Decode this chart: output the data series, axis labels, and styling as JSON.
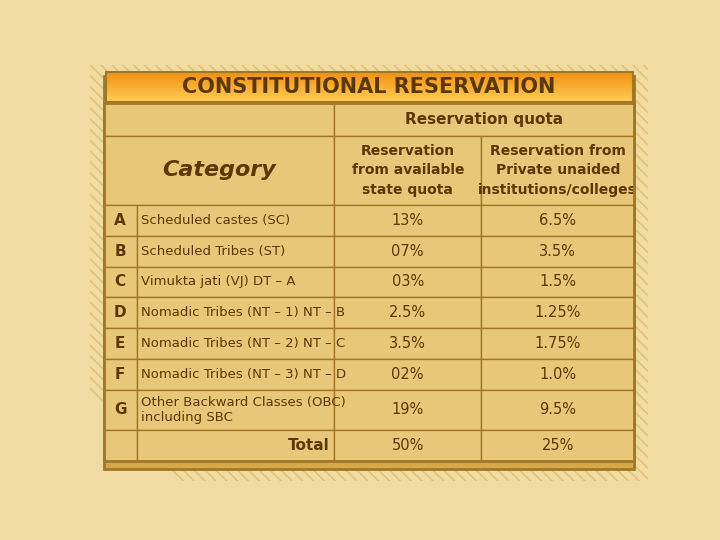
{
  "title": "CONSTITUTIONAL RESERVATION",
  "title_bg_top": "#FFB733",
  "title_bg_bot": "#F5A020",
  "title_color": "#6B3A00",
  "header1": "Reservation quota",
  "col1_header": "Reservation\nfrom available\nstate quota",
  "col2_header": "Reservation from\nPrivate unaided\ninstitutions/colleges",
  "rows": [
    [
      "A",
      "Scheduled castes (SC)",
      "13%",
      "6.5%"
    ],
    [
      "B",
      "Scheduled Tribes (ST)",
      "07%",
      "3.5%"
    ],
    [
      "C",
      "Vimukta jati (VJ) DT – A",
      "03%",
      "1.5%"
    ],
    [
      "D",
      "Nomadic Tribes (NT – 1) NT – B",
      "2.5%",
      "1.25%"
    ],
    [
      "E",
      "Nomadic Tribes (NT – 2) NT – C",
      "3.5%",
      "1.75%"
    ],
    [
      "F",
      "Nomadic Tribes (NT – 3) NT – D",
      "02%",
      "1.0%"
    ],
    [
      "G",
      "Other Backward Classes (OBC)\nincluding SBC",
      "19%",
      "9.5%"
    ],
    [
      "",
      "Total",
      "50%",
      "25%"
    ]
  ],
  "page_bg": "#F0DCA0",
  "table_bg": "#D4A84B",
  "cell_bg_light": "#E8C878",
  "cell_border": "#A07828",
  "text_color": "#5A3800",
  "stripe_color": "#C8A040"
}
